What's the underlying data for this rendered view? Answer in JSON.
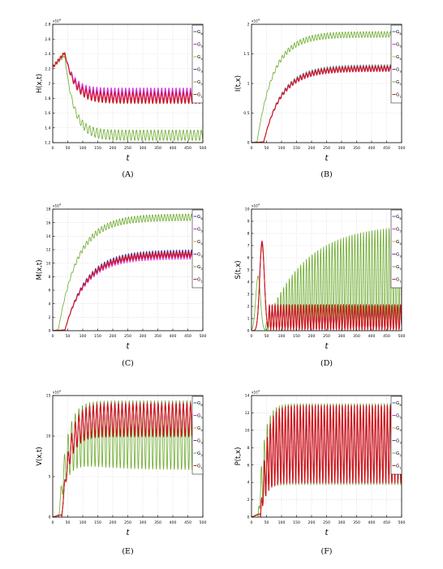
{
  "figure": {
    "background": "#ffffff",
    "legend_labels": [
      "G6",
      "G5",
      "G4",
      "G3",
      "G2",
      "G1"
    ],
    "legend_colors": [
      "#1f5fbf",
      "#e020e0",
      "#e0a020",
      "#7a2aa0",
      "#6aaa2a",
      "#d01818"
    ]
  },
  "chart_data": [
    {
      "type": "line",
      "caption": "(A)",
      "ylabel": "H(x,t)",
      "xlabel": "t",
      "exponent": "x10^4",
      "xlim": [
        0,
        500
      ],
      "ylim": [
        1.2,
        2.8
      ],
      "xticks": [
        "0",
        "50",
        "100",
        "150",
        "200",
        "250",
        "300",
        "350",
        "400",
        "450",
        "500"
      ],
      "yticks": [
        "1.2",
        "1.4",
        "1.6",
        "1.8",
        "2",
        "2.2",
        "2.4",
        "2.6",
        "2.8"
      ],
      "grid": true,
      "legend": "right",
      "series": [
        {
          "name": "G6",
          "color": "#1f5fbf",
          "rise_t": 40,
          "peak": 2.42,
          "base": 1.84,
          "amp": 0.07,
          "period": 12
        },
        {
          "name": "G5",
          "color": "#e020e0",
          "rise_t": 40,
          "peak": 2.42,
          "base": 1.86,
          "amp": 0.08,
          "period": 12
        },
        {
          "name": "G4",
          "color": "#e0a020",
          "rise_t": 40,
          "peak": 2.42,
          "base": 1.83,
          "amp": 0.07,
          "period": 12
        },
        {
          "name": "G3",
          "color": "#7a2aa0",
          "rise_t": 40,
          "peak": 2.42,
          "base": 1.82,
          "amp": 0.07,
          "period": 12
        },
        {
          "name": "G2",
          "color": "#6aaa2a",
          "rise_t": 40,
          "peak": 2.38,
          "base": 1.3,
          "amp": 0.07,
          "period": 12
        },
        {
          "name": "G1",
          "color": "#d01818",
          "rise_t": 40,
          "peak": 2.42,
          "base": 1.8,
          "amp": 0.07,
          "period": 12
        }
      ]
    },
    {
      "type": "line",
      "caption": "(B)",
      "ylabel": "I(t,x)",
      "xlabel": "t",
      "exponent": "x10^4",
      "xlim": [
        0,
        500
      ],
      "ylim": [
        0,
        2
      ],
      "xticks": [
        "0",
        "50",
        "100",
        "150",
        "200",
        "250",
        "300",
        "350",
        "400",
        "450",
        "500"
      ],
      "yticks": [
        "0",
        "0.5",
        "1",
        "1.5",
        "2"
      ],
      "grid": true,
      "legend": "right",
      "series": [
        {
          "name": "G6",
          "color": "#1f5fbf",
          "start": 40,
          "final": 1.28,
          "tau": 60,
          "amp": 0.04,
          "period": 10
        },
        {
          "name": "G5",
          "color": "#e020e0",
          "start": 40,
          "final": 1.24,
          "tau": 60,
          "amp": 0.04,
          "period": 10
        },
        {
          "name": "G4",
          "color": "#e0a020",
          "start": 40,
          "final": 1.27,
          "tau": 60,
          "amp": 0.04,
          "period": 10
        },
        {
          "name": "G3",
          "color": "#7a2aa0",
          "start": 40,
          "final": 1.26,
          "tau": 60,
          "amp": 0.04,
          "period": 10
        },
        {
          "name": "G2",
          "color": "#6aaa2a",
          "start": 18,
          "final": 1.83,
          "tau": 55,
          "amp": 0.05,
          "period": 10
        },
        {
          "name": "G1",
          "color": "#d01818",
          "start": 40,
          "final": 1.25,
          "tau": 60,
          "amp": 0.04,
          "period": 10
        }
      ]
    },
    {
      "type": "line",
      "caption": "(C)",
      "ylabel": "M(x,t)",
      "xlabel": "t",
      "exponent": "x10^4",
      "xlim": [
        0,
        500
      ],
      "ylim": [
        0,
        18
      ],
      "xticks": [
        "0",
        "50",
        "100",
        "150",
        "200",
        "250",
        "300",
        "350",
        "400",
        "450",
        "500"
      ],
      "yticks": [
        "0",
        "2",
        "4",
        "6",
        "8",
        "10",
        "12",
        "14",
        "16",
        "18"
      ],
      "grid": true,
      "legend": "right",
      "series": [
        {
          "name": "G6",
          "color": "#1f5fbf",
          "start": 40,
          "final": 11.6,
          "tau": 70,
          "amp": 0.4,
          "period": 10
        },
        {
          "name": "G5",
          "color": "#e020e0",
          "start": 40,
          "final": 11.0,
          "tau": 70,
          "amp": 0.4,
          "period": 10
        },
        {
          "name": "G4",
          "color": "#e0a020",
          "start": 40,
          "final": 11.4,
          "tau": 70,
          "amp": 0.4,
          "period": 10
        },
        {
          "name": "G3",
          "color": "#7a2aa0",
          "start": 40,
          "final": 11.5,
          "tau": 70,
          "amp": 0.4,
          "period": 10
        },
        {
          "name": "G2",
          "color": "#6aaa2a",
          "start": 18,
          "final": 16.8,
          "tau": 65,
          "amp": 0.5,
          "period": 10
        },
        {
          "name": "G1",
          "color": "#d01818",
          "start": 40,
          "final": 11.3,
          "tau": 70,
          "amp": 0.4,
          "period": 10
        }
      ]
    },
    {
      "type": "line",
      "caption": "(D)",
      "ylabel": "S(t,x)",
      "xlabel": "t",
      "exponent": "x10^4",
      "xlim": [
        0,
        500
      ],
      "ylim": [
        0,
        10
      ],
      "xticks": [
        "0",
        "50",
        "100",
        "150",
        "200",
        "250",
        "300",
        "350",
        "400",
        "450",
        "500"
      ],
      "yticks": [
        "0",
        "1",
        "2",
        "3",
        "4",
        "5",
        "6",
        "7",
        "8",
        "9",
        "10"
      ],
      "grid": true,
      "legend": "right",
      "series": [
        {
          "name": "G6",
          "color": "#1f5fbf",
          "peak": 7.2,
          "peak_t": 35,
          "high": 2.1,
          "low": 0.1,
          "period": 9.5,
          "grow": 0
        },
        {
          "name": "G5",
          "color": "#e020e0",
          "peak": 7.4,
          "peak_t": 35,
          "high": 2.1,
          "low": 0.1,
          "period": 9.5,
          "grow": 0
        },
        {
          "name": "G4",
          "color": "#e0a020",
          "peak": 7.0,
          "peak_t": 35,
          "high": 2.1,
          "low": 0.1,
          "period": 9.5,
          "grow": 0
        },
        {
          "name": "G3",
          "color": "#7a2aa0",
          "peak": 7.1,
          "peak_t": 35,
          "high": 2.1,
          "low": 0.1,
          "period": 9.5,
          "grow": 0
        },
        {
          "name": "G2",
          "color": "#6aaa2a",
          "peak": 4.5,
          "peak_t": 22,
          "high": 8.8,
          "low": 0.05,
          "period": 9.5,
          "grow": 1
        },
        {
          "name": "G1",
          "color": "#d01818",
          "peak": 7.3,
          "peak_t": 35,
          "high": 2.1,
          "low": 0.1,
          "period": 9.5,
          "grow": 0
        }
      ]
    },
    {
      "type": "line",
      "caption": "(E)",
      "ylabel": "V(x,t)",
      "xlabel": "t",
      "exponent": "x10^4",
      "xlim": [
        0,
        500
      ],
      "ylim": [
        0,
        15
      ],
      "xticks": [
        "0",
        "50",
        "100",
        "150",
        "200",
        "250",
        "300",
        "350",
        "400",
        "450",
        "500"
      ],
      "yticks": [
        "0",
        "5",
        "10",
        "15"
      ],
      "grid": true,
      "legend": "right",
      "series": [
        {
          "name": "G6",
          "color": "#1f5fbf",
          "start": 30,
          "high": 14.0,
          "low": 10.0,
          "period": 12,
          "green": false
        },
        {
          "name": "G5",
          "color": "#e020e0",
          "start": 30,
          "high": 13.8,
          "low": 10.2,
          "period": 12,
          "green": false
        },
        {
          "name": "G4",
          "color": "#e0a020",
          "start": 30,
          "high": 13.9,
          "low": 10.1,
          "period": 12,
          "green": false
        },
        {
          "name": "G3",
          "color": "#7a2aa0",
          "start": 30,
          "high": 14.1,
          "low": 10.0,
          "period": 12,
          "green": false
        },
        {
          "name": "G2",
          "color": "#6aaa2a",
          "start": 20,
          "high": 14.4,
          "low": 5.8,
          "period": 12,
          "green": true
        },
        {
          "name": "G1",
          "color": "#d01818",
          "start": 30,
          "high": 14.0,
          "low": 10.0,
          "period": 12,
          "green": false
        }
      ]
    },
    {
      "type": "line",
      "caption": "(F)",
      "ylabel": "P(t,x)",
      "xlabel": "t",
      "exponent": "x10^4",
      "xlim": [
        0,
        500
      ],
      "ylim": [
        0,
        14
      ],
      "xticks": [
        "0",
        "50",
        "100",
        "150",
        "200",
        "250",
        "300",
        "350",
        "400",
        "450",
        "500"
      ],
      "yticks": [
        "0",
        "2",
        "4",
        "6",
        "8",
        "10",
        "12",
        "14"
      ],
      "grid": true,
      "legend": "right",
      "series": [
        {
          "name": "G6",
          "color": "#1f5fbf",
          "start": 30,
          "high": 12.9,
          "low": 3.9,
          "period": 10
        },
        {
          "name": "G5",
          "color": "#e020e0",
          "start": 30,
          "high": 12.8,
          "low": 4.0,
          "period": 10
        },
        {
          "name": "G4",
          "color": "#e0a020",
          "start": 30,
          "high": 12.9,
          "low": 3.9,
          "period": 10
        },
        {
          "name": "G3",
          "color": "#7a2aa0",
          "start": 30,
          "high": 12.9,
          "low": 3.9,
          "period": 10
        },
        {
          "name": "G2",
          "color": "#6aaa2a",
          "start": 22,
          "high": 13.1,
          "low": 3.7,
          "period": 10
        },
        {
          "name": "G1",
          "color": "#d01818",
          "start": 30,
          "high": 12.9,
          "low": 3.9,
          "period": 10
        }
      ]
    }
  ]
}
